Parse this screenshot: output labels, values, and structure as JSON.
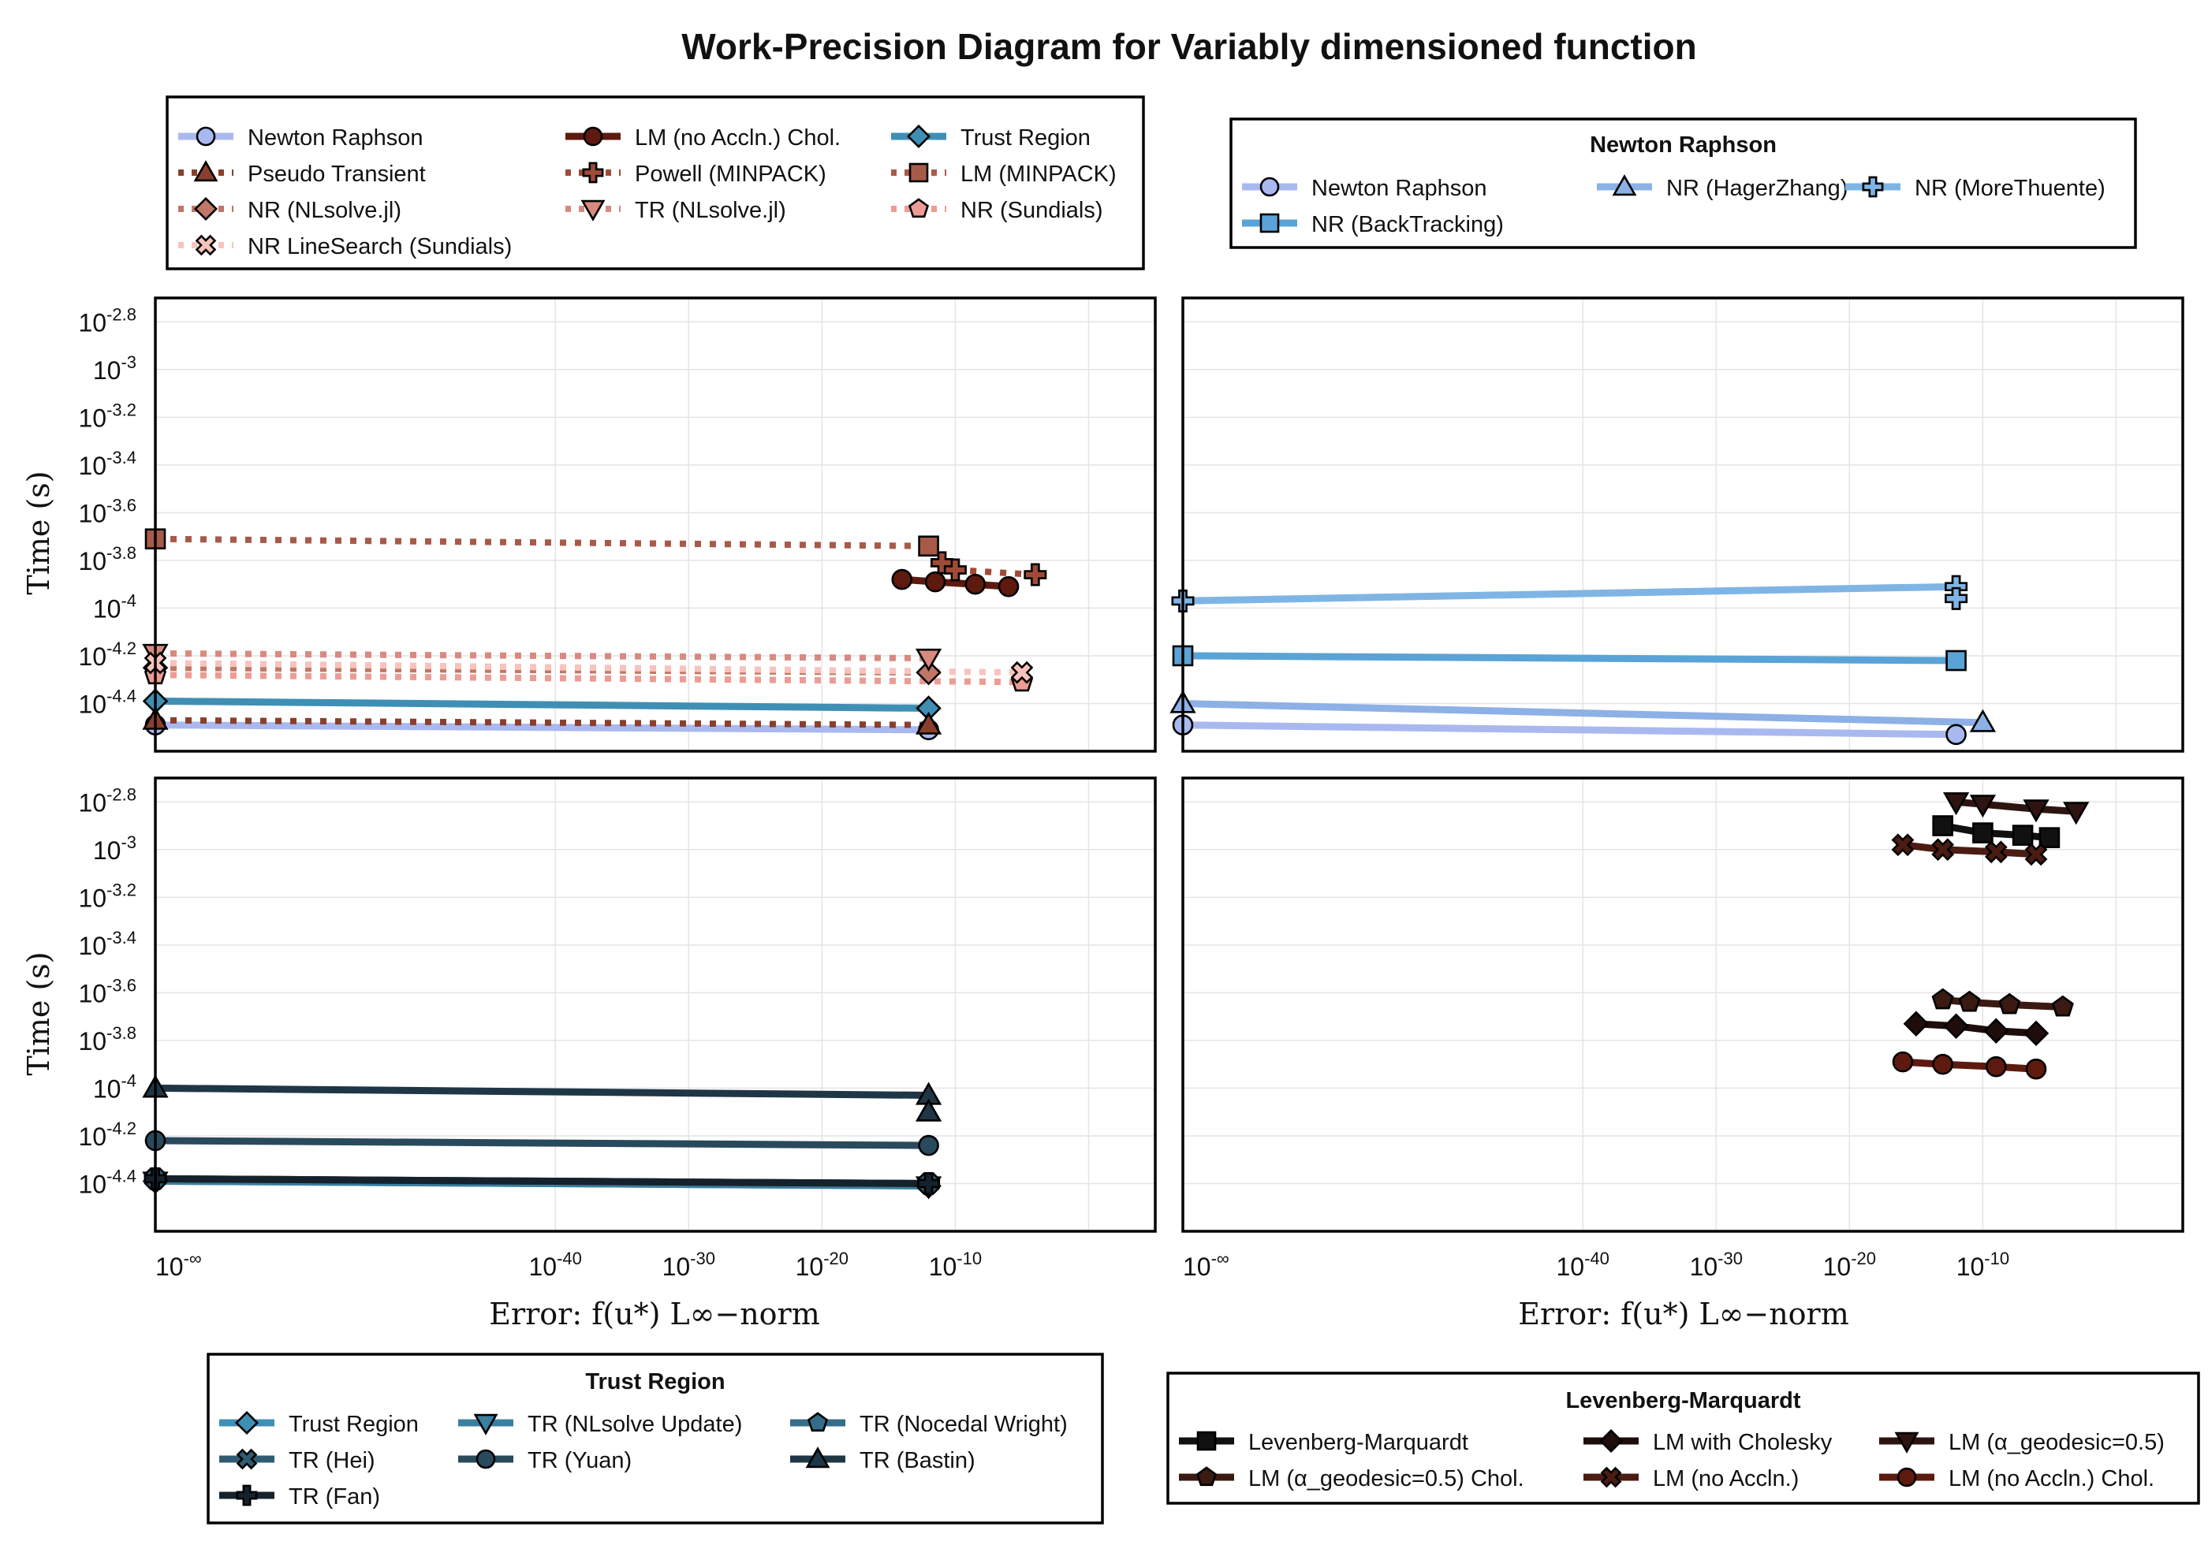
{
  "title": "Work-Precision Diagram for Variably dimensioned function",
  "y_axis_label": "Time (s)",
  "x_axis_label": "Error: f(u*) L∞−norm",
  "x_tick_labels": [
    "10⁻∞",
    "10⁻⁴⁰",
    "10⁻³⁰",
    "10⁻²⁰",
    "10⁻¹⁰"
  ],
  "y_tick_labels": [
    "10⁻²·⁸",
    "10⁻³",
    "10⁻³·²",
    "10⁻³·⁴",
    "10⁻³·⁶",
    "10⁻³·⁸",
    "10⁻⁴",
    "10⁻⁴·²",
    "10⁻⁴·⁴"
  ],
  "legends": {
    "top_left": {
      "title": "",
      "items": [
        {
          "label": "Newton Raphson",
          "color": "#a9b9f0",
          "marker": "circle",
          "dash": "solid"
        },
        {
          "label": "LM (no Accln.) Chol.",
          "color": "#5e1a0e",
          "marker": "circle",
          "dash": "solid"
        },
        {
          "label": "Trust Region",
          "color": "#3f8fb4",
          "marker": "diamond",
          "dash": "solid"
        },
        {
          "label": "Pseudo Transient",
          "color": "#8a3f2c",
          "marker": "triangle",
          "dash": "dot"
        },
        {
          "label": "Powell (MINPACK)",
          "color": "#a04a38",
          "marker": "cross",
          "dash": "dot"
        },
        {
          "label": "LM (MINPACK)",
          "color": "#a85a4a",
          "marker": "square",
          "dash": "dot"
        },
        {
          "label": "NR (NLsolve.jl)",
          "color": "#c07767",
          "marker": "diamond",
          "dash": "dot"
        },
        {
          "label": "TR (NLsolve.jl)",
          "color": "#d88a80",
          "marker": "triangle-down",
          "dash": "dot"
        },
        {
          "label": "NR (Sundials)",
          "color": "#ec9c94",
          "marker": "pentagon",
          "dash": "dot"
        },
        {
          "label": "NR LineSearch (Sundials)",
          "color": "#f8c3bd",
          "marker": "x",
          "dash": "dot"
        }
      ]
    },
    "top_right": {
      "title": "Newton Raphson",
      "items": [
        {
          "label": "Newton Raphson",
          "color": "#a9b9f0",
          "marker": "circle",
          "dash": "solid"
        },
        {
          "label": "NR (HagerZhang)",
          "color": "#8db0e6",
          "marker": "triangle",
          "dash": "solid"
        },
        {
          "label": "NR (MoreThuente)",
          "color": "#7fb5e4",
          "marker": "cross",
          "dash": "solid"
        },
        {
          "label": "NR (BackTracking)",
          "color": "#5aa3d6",
          "marker": "square",
          "dash": "solid"
        }
      ]
    },
    "bottom_left": {
      "title": "Trust Region",
      "items": [
        {
          "label": "Trust Region",
          "color": "#3f8fb4",
          "marker": "diamond",
          "dash": "solid"
        },
        {
          "label": "TR (NLsolve Update)",
          "color": "#3b7f9f",
          "marker": "triangle-down",
          "dash": "solid"
        },
        {
          "label": "TR (Nocedal Wright)",
          "color": "#356d88",
          "marker": "pentagon",
          "dash": "solid"
        },
        {
          "label": "TR (Hei)",
          "color": "#2f5c72",
          "marker": "x",
          "dash": "solid"
        },
        {
          "label": "TR (Yuan)",
          "color": "#294a5c",
          "marker": "circle",
          "dash": "solid"
        },
        {
          "label": "TR (Bastin)",
          "color": "#1f3646",
          "marker": "triangle",
          "dash": "solid"
        },
        {
          "label": "TR (Fan)",
          "color": "#15222c",
          "marker": "cross",
          "dash": "solid"
        }
      ]
    },
    "bottom_right": {
      "title": "Levenberg-Marquardt",
      "items": [
        {
          "label": "Levenberg-Marquardt",
          "color": "#111111",
          "marker": "square",
          "dash": "solid"
        },
        {
          "label": "LM with Cholesky",
          "color": "#1f0d0b",
          "marker": "diamond",
          "dash": "solid"
        },
        {
          "label": "LM (α_geodesic=0.5)",
          "color": "#2e1410",
          "marker": "triangle-down",
          "dash": "solid"
        },
        {
          "label": "LM (α_geodesic=0.5) Chol.",
          "color": "#3a1a12",
          "marker": "pentagon",
          "dash": "solid"
        },
        {
          "label": "LM (no Accln.)",
          "color": "#4a1c12",
          "marker": "x",
          "dash": "solid"
        },
        {
          "label": "LM (no Accln.) Chol.",
          "color": "#5e1a0e",
          "marker": "circle",
          "dash": "solid"
        }
      ]
    }
  },
  "chart_data": [
    {
      "type": "line",
      "panel": "top-left",
      "xscale": "log10",
      "yscale": "log10",
      "xlim": [
        -70,
        5
      ],
      "ylim": [
        -4.6,
        -2.7
      ],
      "grid": true,
      "legend_position": "outside-top",
      "series": [
        {
          "name": "Newton Raphson",
          "x": [
            "-inf",
            -12
          ],
          "y": [
            -4.49,
            -4.51
          ]
        },
        {
          "name": "LM (no Accln.) Chol.",
          "x": [
            -14,
            -11.5,
            -8.5,
            -6
          ],
          "y": [
            -3.88,
            -3.89,
            -3.9,
            -3.91
          ]
        },
        {
          "name": "Trust Region",
          "x": [
            "-inf",
            -12
          ],
          "y": [
            -4.39,
            -4.42
          ]
        },
        {
          "name": "Pseudo Transient",
          "x": [
            "-inf",
            -12
          ],
          "y": [
            -4.47,
            -4.49
          ]
        },
        {
          "name": "Powell (MINPACK)",
          "x": [
            -11,
            -10,
            -4
          ],
          "y": [
            -3.81,
            -3.84,
            -3.86
          ]
        },
        {
          "name": "LM (MINPACK)",
          "x": [
            "-inf",
            -12
          ],
          "y": [
            -3.71,
            -3.74
          ]
        },
        {
          "name": "NR (NLsolve.jl)",
          "x": [
            "-inf",
            -12
          ],
          "y": [
            -4.25,
            -4.27
          ]
        },
        {
          "name": "TR (NLsolve.jl)",
          "x": [
            "-inf",
            -12
          ],
          "y": [
            -4.19,
            -4.21
          ]
        },
        {
          "name": "NR (Sundials)",
          "x": [
            "-inf",
            -5
          ],
          "y": [
            -4.28,
            -4.31
          ]
        },
        {
          "name": "NR LineSearch (Sundials)",
          "x": [
            "-inf",
            -5
          ],
          "y": [
            -4.23,
            -4.27
          ]
        }
      ]
    },
    {
      "type": "line",
      "panel": "top-right",
      "xscale": "log10",
      "yscale": "log10",
      "xlim": [
        -70,
        5
      ],
      "ylim": [
        -4.6,
        -2.7
      ],
      "grid": true,
      "legend_position": "outside-top",
      "series": [
        {
          "name": "Newton Raphson",
          "x": [
            "-inf",
            -12
          ],
          "y": [
            -4.49,
            -4.53
          ]
        },
        {
          "name": "NR (HagerZhang)",
          "x": [
            "-inf",
            -10
          ],
          "y": [
            -4.4,
            -4.48
          ]
        },
        {
          "name": "NR (MoreThuente)",
          "x": [
            "-inf",
            -12,
            -12
          ],
          "y": [
            -3.97,
            -3.91,
            -3.96
          ]
        },
        {
          "name": "NR (BackTracking)",
          "x": [
            "-inf",
            -12
          ],
          "y": [
            -4.2,
            -4.22
          ]
        }
      ]
    },
    {
      "type": "line",
      "panel": "bottom-left",
      "xscale": "log10",
      "yscale": "log10",
      "xlim": [
        -70,
        5
      ],
      "ylim": [
        -4.6,
        -2.7
      ],
      "grid": true,
      "legend_position": "outside-bottom",
      "series": [
        {
          "name": "Trust Region",
          "x": [
            "-inf",
            -12
          ],
          "y": [
            -4.39,
            -4.41
          ]
        },
        {
          "name": "TR (NLsolve Update)",
          "x": [
            "-inf",
            -12
          ],
          "y": [
            -4.39,
            -4.41
          ]
        },
        {
          "name": "TR (Nocedal Wright)",
          "x": [
            "-inf",
            -12
          ],
          "y": [
            -4.38,
            -4.4
          ]
        },
        {
          "name": "TR (Hei)",
          "x": [
            "-inf",
            -12
          ],
          "y": [
            -4.38,
            -4.4
          ]
        },
        {
          "name": "TR (Yuan)",
          "x": [
            "-inf",
            -12
          ],
          "y": [
            -4.22,
            -4.24
          ]
        },
        {
          "name": "TR (Bastin)",
          "x": [
            "-inf",
            -12,
            -12
          ],
          "y": [
            -4.0,
            -4.03,
            -4.1
          ]
        },
        {
          "name": "TR (Fan)",
          "x": [
            "-inf",
            -12
          ],
          "y": [
            -4.38,
            -4.4
          ]
        }
      ]
    },
    {
      "type": "line",
      "panel": "bottom-right",
      "xscale": "log10",
      "yscale": "log10",
      "xlim": [
        -70,
        5
      ],
      "ylim": [
        -4.6,
        -2.7
      ],
      "grid": true,
      "legend_position": "outside-bottom",
      "series": [
        {
          "name": "Levenberg-Marquardt",
          "x": [
            -13,
            -10,
            -7,
            -5
          ],
          "y": [
            -2.9,
            -2.93,
            -2.94,
            -2.95
          ]
        },
        {
          "name": "LM with Cholesky",
          "x": [
            -15,
            -12,
            -9,
            -6
          ],
          "y": [
            -3.73,
            -3.74,
            -3.76,
            -3.77
          ]
        },
        {
          "name": "LM (α_geodesic=0.5)",
          "x": [
            -12,
            -10,
            -6,
            -3
          ],
          "y": [
            -2.8,
            -2.81,
            -2.83,
            -2.84
          ]
        },
        {
          "name": "LM (α_geodesic=0.5) Chol.",
          "x": [
            -13,
            -11,
            -8,
            -4
          ],
          "y": [
            -3.63,
            -3.64,
            -3.65,
            -3.66
          ]
        },
        {
          "name": "LM (no Accln.)",
          "x": [
            -16,
            -13,
            -9,
            -6
          ],
          "y": [
            -2.98,
            -3.0,
            -3.01,
            -3.02
          ]
        },
        {
          "name": "LM (no Accln.) Chol.",
          "x": [
            -16,
            -13,
            -9,
            -6
          ],
          "y": [
            -3.89,
            -3.9,
            -3.91,
            -3.92
          ]
        }
      ]
    }
  ]
}
